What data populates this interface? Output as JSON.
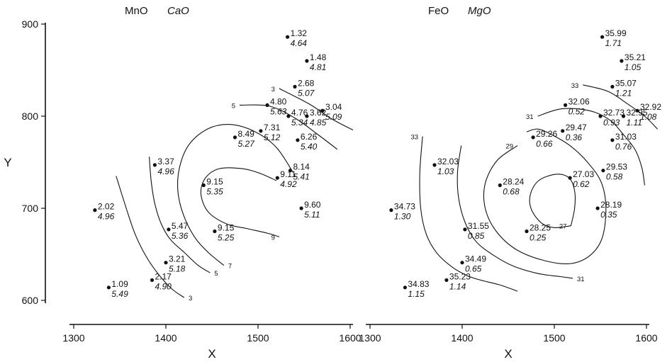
{
  "chart_data": [
    {
      "type": "scatter",
      "title": [
        "MnO",
        "CaO"
      ],
      "xlabel": "X",
      "ylabel": "Y",
      "xlim": [
        1300,
        1600
      ],
      "ylim": [
        600,
        900
      ],
      "xticks": [
        1300,
        1400,
        1500,
        1600
      ],
      "yticks": [
        600,
        700,
        800,
        900
      ],
      "grid": false,
      "points": [
        {
          "x": 1532,
          "y": 886,
          "upper": "1.32",
          "lower": "4.64"
        },
        {
          "x": 1553,
          "y": 860,
          "upper": "1.48",
          "lower": "4.81"
        },
        {
          "x": 1540,
          "y": 832,
          "upper": "2.68",
          "lower": "5.07"
        },
        {
          "x": 1510,
          "y": 812,
          "upper": "4.80",
          "lower": "5.63"
        },
        {
          "x": 1533,
          "y": 800,
          "upper": "4.76",
          "lower": "5.34"
        },
        {
          "x": 1553,
          "y": 800,
          "upper": "3.62",
          "lower": "4.85"
        },
        {
          "x": 1570,
          "y": 806,
          "upper": "3.04",
          "lower": "5.09"
        },
        {
          "x": 1503,
          "y": 784,
          "upper": "7.31",
          "lower": "5.12"
        },
        {
          "x": 1475,
          "y": 777,
          "upper": "8.49",
          "lower": "5.27"
        },
        {
          "x": 1543,
          "y": 774,
          "upper": "6.26",
          "lower": "5.40"
        },
        {
          "x": 1388,
          "y": 747,
          "upper": "3.37",
          "lower": "4.96"
        },
        {
          "x": 1521,
          "y": 733,
          "upper": "9.11",
          "lower": "4.92"
        },
        {
          "x": 1535,
          "y": 741,
          "upper": "8.14",
          "lower": "5.41"
        },
        {
          "x": 1441,
          "y": 725,
          "upper": "9.15",
          "lower": "5.35"
        },
        {
          "x": 1547,
          "y": 700,
          "upper": "9.60",
          "lower": "5.11"
        },
        {
          "x": 1323,
          "y": 698,
          "upper": "2.02",
          "lower": "4.96"
        },
        {
          "x": 1403,
          "y": 677,
          "upper": "5.47",
          "lower": "5.36"
        },
        {
          "x": 1453,
          "y": 675,
          "upper": "9.15",
          "lower": "5.25"
        },
        {
          "x": 1400,
          "y": 641,
          "upper": "3.21",
          "lower": "5.18"
        },
        {
          "x": 1385,
          "y": 622,
          "upper": "2.17",
          "lower": "4.90"
        },
        {
          "x": 1338,
          "y": 614,
          "upper": "1.09",
          "lower": "5.49"
        }
      ],
      "contours": [
        {
          "label": "3",
          "points": [
            [
              1523,
              830
            ],
            [
              1556,
              813
            ],
            [
              1580,
              797
            ],
            [
              1603,
              785
            ]
          ],
          "label_at": 0
        },
        {
          "label": "5",
          "points": [
            [
              1480,
              812
            ],
            [
              1512,
              811
            ],
            [
              1540,
              798
            ],
            [
              1565,
              780
            ],
            [
              1586,
              764
            ]
          ],
          "label_at": 0
        },
        {
          "label": "7",
          "points": [
            [
              1538,
              739
            ],
            [
              1520,
              766
            ],
            [
              1497,
              783
            ],
            [
              1470,
              791
            ],
            [
              1445,
              786
            ],
            [
              1425,
              769
            ],
            [
              1415,
              745
            ],
            [
              1413,
              719
            ],
            [
              1419,
              693
            ],
            [
              1431,
              669
            ],
            [
              1446,
              652
            ],
            [
              1463,
              638
            ]
          ],
          "label_at": 11
        },
        {
          "label": "9",
          "points": [
            [
              1523,
              669
            ],
            [
              1510,
              673
            ],
            [
              1488,
              678
            ],
            [
              1466,
              683
            ],
            [
              1446,
              696
            ],
            [
              1438,
              716
            ],
            [
              1443,
              733
            ],
            [
              1458,
              743
            ],
            [
              1483,
              743
            ],
            [
              1502,
              738
            ],
            [
              1520,
              730
            ]
          ],
          "label_at": 0
        },
        {
          "label": "5",
          "points": [
            [
              1382,
              756
            ],
            [
              1384,
              730
            ],
            [
              1388,
              705
            ],
            [
              1395,
              683
            ],
            [
              1405,
              666
            ],
            [
              1420,
              652
            ],
            [
              1435,
              638
            ],
            [
              1448,
              630
            ]
          ],
          "label_at": 7
        },
        {
          "label": "3",
          "points": [
            [
              1346,
              735
            ],
            [
              1357,
              700
            ],
            [
              1367,
              671
            ],
            [
              1379,
              647
            ],
            [
              1393,
              627
            ],
            [
              1407,
              612
            ],
            [
              1420,
              603
            ]
          ],
          "label_at": 6
        }
      ]
    },
    {
      "type": "scatter",
      "title": [
        "FeO",
        "MgO"
      ],
      "xlabel": "X",
      "ylabel": "",
      "xlim": [
        1300,
        1600
      ],
      "ylim": [
        600,
        900
      ],
      "xticks": [
        1300,
        1400,
        1500,
        1600
      ],
      "yticks": [],
      "grid": false,
      "points": [
        {
          "x": 1552,
          "y": 886,
          "upper": "35.99",
          "lower": "1.71"
        },
        {
          "x": 1573,
          "y": 860,
          "upper": "35.21",
          "lower": "1.05"
        },
        {
          "x": 1563,
          "y": 832,
          "upper": "35.07",
          "lower": "1.21"
        },
        {
          "x": 1512,
          "y": 812,
          "upper": "32.06",
          "lower": "0.52"
        },
        {
          "x": 1550,
          "y": 800,
          "upper": "32.73",
          "lower": "0.93"
        },
        {
          "x": 1575,
          "y": 800,
          "upper": "32.95",
          "lower": "1.11"
        },
        {
          "x": 1590,
          "y": 806,
          "upper": "32.92",
          "lower": "1.08"
        },
        {
          "x": 1509,
          "y": 784,
          "upper": "29.47",
          "lower": "0.36"
        },
        {
          "x": 1477,
          "y": 777,
          "upper": "29.26",
          "lower": "0.66"
        },
        {
          "x": 1563,
          "y": 774,
          "upper": "31.03",
          "lower": "0.76"
        },
        {
          "x": 1370,
          "y": 747,
          "upper": "32.03",
          "lower": "1.03"
        },
        {
          "x": 1517,
          "y": 733,
          "upper": "27.03",
          "lower": "0.62"
        },
        {
          "x": 1553,
          "y": 741,
          "upper": "29.53",
          "lower": "0.58"
        },
        {
          "x": 1441,
          "y": 725,
          "upper": "28.24",
          "lower": "0.68"
        },
        {
          "x": 1547,
          "y": 700,
          "upper": "28.19",
          "lower": "0.35"
        },
        {
          "x": 1323,
          "y": 698,
          "upper": "34.73",
          "lower": "1.30"
        },
        {
          "x": 1403,
          "y": 677,
          "upper": "31.55",
          "lower": "0.85"
        },
        {
          "x": 1470,
          "y": 675,
          "upper": "28.25",
          "lower": "0.25"
        },
        {
          "x": 1400,
          "y": 641,
          "upper": "34.49",
          "lower": "0.65"
        },
        {
          "x": 1383,
          "y": 622,
          "upper": "35.23",
          "lower": "1.14"
        },
        {
          "x": 1338,
          "y": 614,
          "upper": "34.83",
          "lower": "1.15"
        }
      ],
      "contours": [
        {
          "label": "33",
          "points": [
            [
              1531,
              834
            ],
            [
              1558,
              827
            ],
            [
              1580,
              813
            ],
            [
              1598,
              800
            ],
            [
              1612,
              786
            ]
          ],
          "label_at": 0
        },
        {
          "label": "31",
          "points": [
            [
              1482,
              800
            ],
            [
              1508,
              808
            ],
            [
              1538,
              806
            ],
            [
              1560,
              796
            ],
            [
              1575,
              780
            ],
            [
              1588,
              763
            ],
            [
              1595,
              744
            ],
            [
              1598,
              725
            ]
          ],
          "label_at": 0
        },
        {
          "label": "29",
          "points": [
            [
              1460,
              768
            ],
            [
              1438,
              752
            ],
            [
              1425,
              727
            ],
            [
              1425,
              700
            ],
            [
              1437,
              675
            ],
            [
              1459,
              655
            ],
            [
              1490,
              643
            ],
            [
              1518,
              640
            ],
            [
              1539,
              649
            ],
            [
              1552,
              668
            ],
            [
              1556,
              700
            ],
            [
              1551,
              728
            ],
            [
              1536,
              750
            ],
            [
              1517,
              768
            ],
            [
              1497,
              780
            ],
            [
              1482,
              786
            ],
            [
              1470,
              783
            ]
          ],
          "label_at": 0
        },
        {
          "label": "27",
          "points": [
            [
              1518,
              681
            ],
            [
              1500,
              679
            ],
            [
              1486,
              684
            ],
            [
              1475,
              699
            ],
            [
              1474,
              715
            ],
            [
              1483,
              730
            ],
            [
              1502,
              737
            ],
            [
              1516,
              733
            ],
            [
              1522,
              719
            ],
            [
              1522,
              700
            ],
            [
              1518,
              681
            ]
          ],
          "label_at": 0
        },
        {
          "label": "31",
          "points": [
            [
              1399,
              768
            ],
            [
              1395,
              740
            ],
            [
              1396,
              712
            ],
            [
              1403,
              685
            ],
            [
              1415,
              664
            ],
            [
              1434,
              649
            ],
            [
              1456,
              637
            ],
            [
              1483,
              629
            ],
            [
              1505,
              626
            ],
            [
              1520,
              624
            ]
          ],
          "label_at": 9
        },
        {
          "label": "33",
          "points": [
            [
              1357,
              778
            ],
            [
              1354,
              738
            ],
            [
              1355,
              700
            ],
            [
              1361,
              672
            ],
            [
              1372,
              652
            ],
            [
              1388,
              637
            ],
            [
              1405,
              627
            ],
            [
              1420,
              622
            ],
            [
              1440,
              617
            ],
            [
              1460,
              610
            ]
          ],
          "label_at": 0
        }
      ]
    }
  ]
}
